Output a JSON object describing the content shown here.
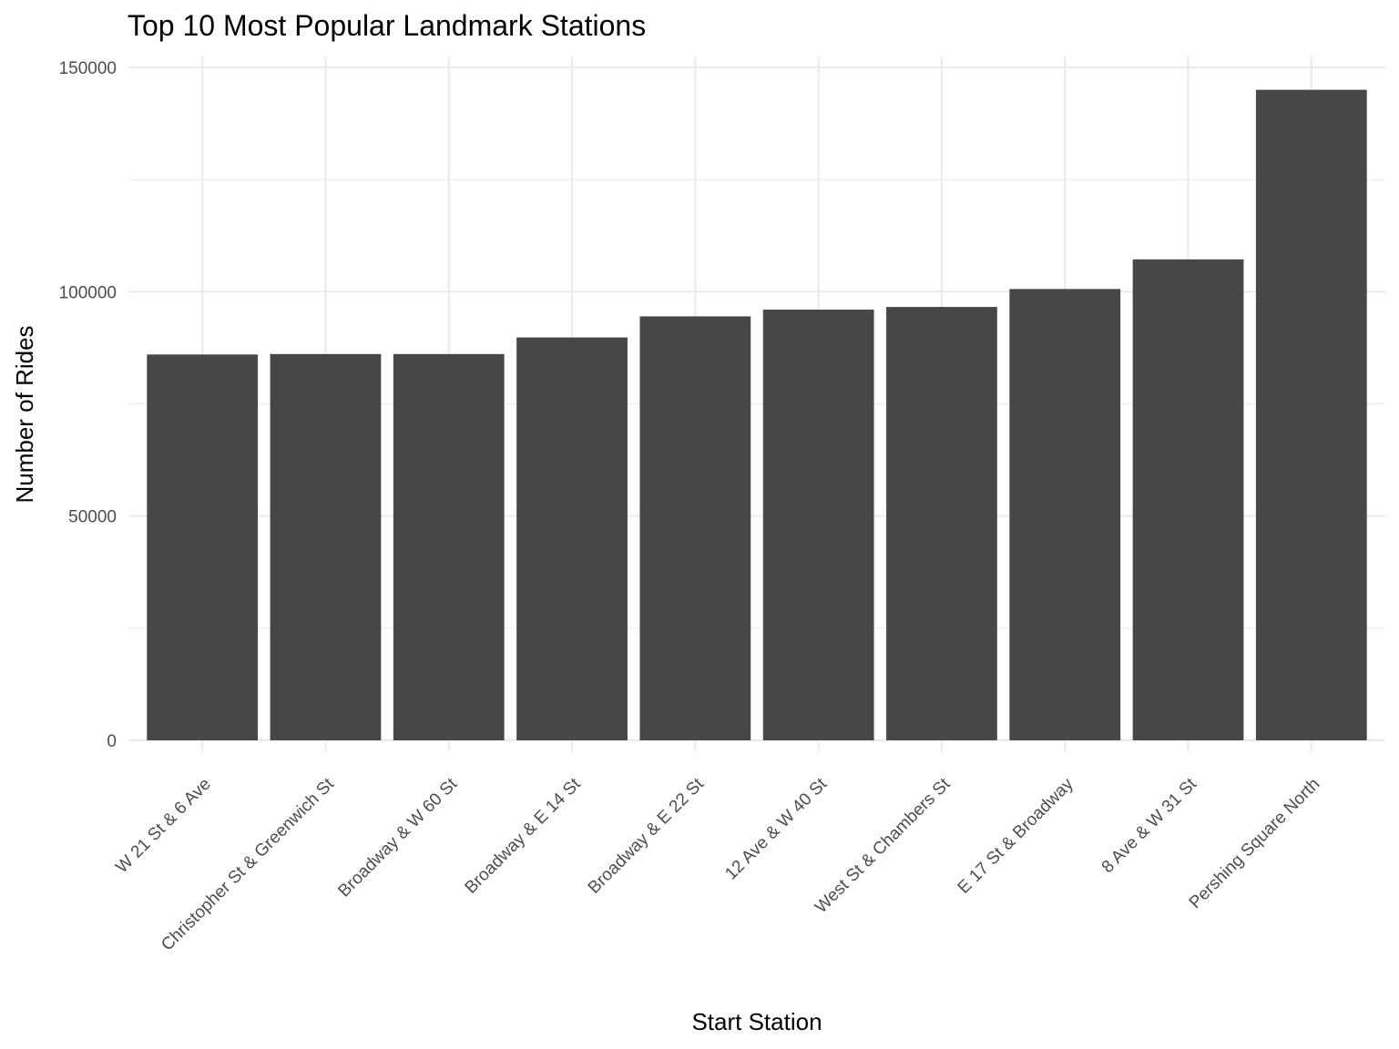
{
  "chart_data": {
    "type": "bar",
    "title": "Top 10 Most Popular Landmark Stations",
    "xlabel": "Start Station",
    "ylabel": "Number of Rides",
    "categories": [
      "W 21 St & 6 Ave",
      "Christopher St & Greenwich St",
      "Broadway & W 60 St",
      "Broadway & E 14 St",
      "Broadway & E 22 St",
      "12 Ave & W 40 St",
      "West St & Chambers St",
      "E 17 St & Broadway",
      "8 Ave & W 31 St",
      "Pershing Square North"
    ],
    "values": [
      86000,
      86100,
      86100,
      89800,
      94500,
      96000,
      96600,
      100600,
      107200,
      145000
    ],
    "ylim": [
      0,
      150000
    ],
    "yticks": [
      0,
      50000,
      100000,
      150000
    ],
    "ytick_labels": [
      "0",
      "50000",
      "100000",
      "150000"
    ],
    "grid": true,
    "legend": "none",
    "bar_color": "#474747"
  }
}
